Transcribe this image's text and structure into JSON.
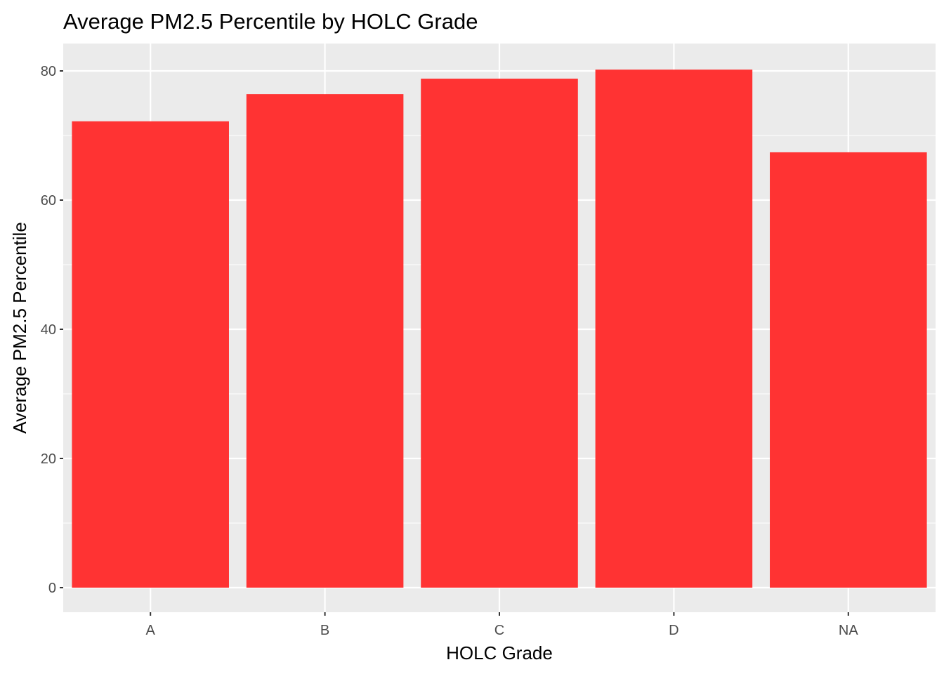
{
  "chart_data": {
    "type": "bar",
    "title": "Average PM2.5 Percentile by HOLC Grade",
    "xlabel": "HOLC Grade",
    "ylabel": "Average PM2.5 Percentile",
    "categories": [
      "A",
      "B",
      "C",
      "D",
      "NA"
    ],
    "values": [
      72.2,
      76.4,
      78.8,
      80.2,
      67.4
    ],
    "ylim": [
      0,
      84.2
    ],
    "yticks": [
      0,
      20,
      40,
      60,
      80
    ],
    "grid": true,
    "legend": "none",
    "colors": {
      "bar": "#ff3333",
      "panel_background": "#ebebeb",
      "grid_line": "#ffffff",
      "tick_text": "#4d4d4d",
      "tick_mark": "#333333"
    }
  }
}
